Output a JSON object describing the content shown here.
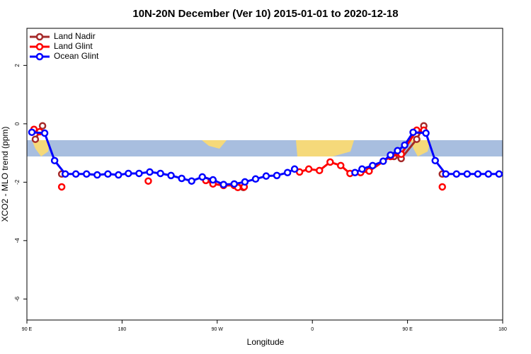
{
  "chart_data": {
    "type": "line",
    "title": "10N-20N December (Ver 10)   2015-01-01 to 2020-12-18",
    "xlabel": "Longitude",
    "ylabel": "XCO2 - MLO trend (ppm)",
    "xlim": [
      90,
      540
    ],
    "xticks": [
      {
        "value": 90,
        "label": "90 E"
      },
      {
        "value": 180,
        "label": "180"
      },
      {
        "value": 270,
        "label": "90 W"
      },
      {
        "value": 360,
        "label": "0"
      },
      {
        "value": 450,
        "label": "90 E"
      },
      {
        "value": 540,
        "label": "180"
      }
    ],
    "ylim": [
      -6.72,
      3.27
    ],
    "yticks": [
      -6,
      -4,
      -2,
      0,
      2
    ],
    "legend": "top-left",
    "series": [
      {
        "name": "Land Nadir",
        "color": "#a52a2a",
        "x": [
          98,
          104.8,
          113,
          122.9,
          200,
          289.5,
          294.8,
          380,
          437.2,
          444,
          458.7,
          465.4,
          474,
          482.9
        ],
        "values": [
          -0.53,
          -0.07,
          null,
          -1.72,
          null,
          -2.16,
          -2.18,
          null,
          -1.12,
          -1.19,
          -0.53,
          -0.07,
          null,
          -1.72
        ]
      },
      {
        "name": "Land Glint",
        "color": "#ff0000",
        "x": [
          96.7,
          102.1,
          112,
          122.9,
          160,
          204.8,
          230,
          259.2,
          266,
          276,
          286.1,
          289.5,
          295.5,
          320,
          347.9,
          356.6,
          366.7,
          376.8,
          386.8,
          395.6,
          405.6,
          413.7,
          433.9,
          444,
          458.7,
          465.4,
          474,
          482.9
        ],
        "values": [
          -0.19,
          -0.27,
          null,
          -2.16,
          null,
          -1.96,
          null,
          -1.94,
          -2.06,
          -2.11,
          -2.11,
          -2.18,
          -2.16,
          null,
          -1.65,
          -1.55,
          -1.6,
          -1.31,
          -1.43,
          -1.7,
          -1.67,
          -1.62,
          -1.12,
          -1.04,
          -0.22,
          -0.22,
          null,
          -2.16
        ]
      },
      {
        "name": "Ocean Glint",
        "color": "#0000ff",
        "x": [
          94.7,
          106.8,
          116.2,
          126.3,
          136.3,
          146.4,
          156.5,
          166.6,
          176.6,
          186,
          196.1,
          206.2,
          216.3,
          226.3,
          236.4,
          245.8,
          255.9,
          266,
          276,
          286.1,
          296.2,
          306.3,
          316.3,
          326.4,
          336.5,
          343.2,
          370,
          400.3,
          407,
          417,
          427,
          433.9,
          440.6,
          447.3,
          455.3,
          467.4,
          476.2,
          486.2,
          496.3,
          506.4,
          516.5,
          526.5,
          536.6
        ],
        "values": [
          -0.29,
          -0.32,
          -1.26,
          -1.72,
          -1.72,
          -1.72,
          -1.75,
          -1.72,
          -1.75,
          -1.7,
          -1.7,
          -1.65,
          -1.7,
          -1.77,
          -1.87,
          -1.96,
          -1.82,
          -1.92,
          -2.08,
          -2.06,
          -1.99,
          -1.89,
          -1.79,
          -1.77,
          -1.67,
          -1.55,
          null,
          -1.67,
          -1.55,
          -1.43,
          -1.28,
          -1.07,
          -0.92,
          -0.73,
          -0.29,
          -0.32,
          -1.26,
          -1.72,
          -1.72,
          -1.72,
          -1.72,
          -1.72,
          -1.72
        ]
      }
    ]
  }
}
